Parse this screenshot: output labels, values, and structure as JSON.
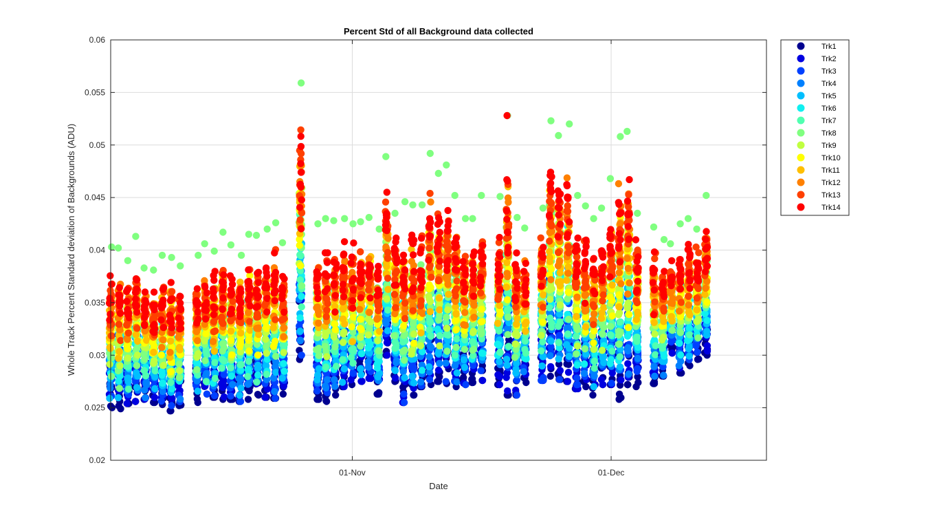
{
  "chart_data": {
    "type": "scatter",
    "title": "Percent Std of all Background data collected",
    "xlabel": "Date",
    "ylabel": "Whole Track Percent Standard deviation of Backgrounds (ADU)",
    "ylim": [
      0.02,
      0.06
    ],
    "yticks": [
      "0.02",
      "0.025",
      "0.03",
      "0.035",
      "0.04",
      "0.045",
      "0.05",
      "0.055",
      "0.06"
    ],
    "xlim_days": [
      -27,
      49
    ],
    "xticks": [
      {
        "label": "01-Nov",
        "day": 1
      },
      {
        "label": "01-Dec",
        "day": 31
      }
    ],
    "grid": true,
    "legend_position": "outside-top-right",
    "series": [
      {
        "name": "Trk1",
        "color": "#00008F",
        "level": 0.0
      },
      {
        "name": "Trk2",
        "color": "#0000E0",
        "level": 0.077
      },
      {
        "name": "Trk3",
        "color": "#0040FF",
        "level": 0.154
      },
      {
        "name": "Trk4",
        "color": "#0080FF",
        "level": 0.231
      },
      {
        "name": "Trk5",
        "color": "#00BFFF",
        "level": 0.308
      },
      {
        "name": "Trk6",
        "color": "#10F0F0",
        "level": 0.385
      },
      {
        "name": "Trk7",
        "color": "#50FFB0",
        "level": 0.462
      },
      {
        "name": "Trk8",
        "color": "#80FF80",
        "level": 0.538
      },
      {
        "name": "Trk9",
        "color": "#C0FF40",
        "level": 0.615
      },
      {
        "name": "Trk10",
        "color": "#FFFF00",
        "level": 0.692
      },
      {
        "name": "Trk11",
        "color": "#FFBF00",
        "level": 0.769
      },
      {
        "name": "Trk12",
        "color": "#FF8000",
        "level": 0.846
      },
      {
        "name": "Trk13",
        "color": "#FF4000",
        "level": 0.923
      },
      {
        "name": "Trk14",
        "color": "#FF0000",
        "level": 1.0
      }
    ],
    "day_columns": [
      {
        "day": -27,
        "min": 0.025,
        "max": 0.0403
      },
      {
        "day": -26,
        "min": 0.0249,
        "max": 0.0402
      },
      {
        "day": -25,
        "min": 0.0254,
        "max": 0.039
      },
      {
        "day": -24,
        "min": 0.0256,
        "max": 0.0413
      },
      {
        "day": -23,
        "min": 0.0258,
        "max": 0.0383
      },
      {
        "day": -22,
        "min": 0.0255,
        "max": 0.0381
      },
      {
        "day": -21,
        "min": 0.0253,
        "max": 0.0395
      },
      {
        "day": -20,
        "min": 0.0247,
        "max": 0.0393
      },
      {
        "day": -19,
        "min": 0.0252,
        "max": 0.0385
      },
      {
        "day": -17,
        "min": 0.0255,
        "max": 0.0395
      },
      {
        "day": -16,
        "min": 0.0263,
        "max": 0.0406
      },
      {
        "day": -15,
        "min": 0.026,
        "max": 0.0399
      },
      {
        "day": -14,
        "min": 0.0258,
        "max": 0.0417
      },
      {
        "day": -13,
        "min": 0.0258,
        "max": 0.0405
      },
      {
        "day": -12,
        "min": 0.0256,
        "max": 0.0395
      },
      {
        "day": -11,
        "min": 0.0258,
        "max": 0.0415
      },
      {
        "day": -10,
        "min": 0.0262,
        "max": 0.0414
      },
      {
        "day": -9,
        "min": 0.026,
        "max": 0.042
      },
      {
        "day": -8,
        "min": 0.0259,
        "max": 0.0426
      },
      {
        "day": -7,
        "min": 0.0263,
        "max": 0.0407
      },
      {
        "day": -5,
        "min": 0.0296,
        "max": 0.0559
      },
      {
        "day": -3,
        "min": 0.0258,
        "max": 0.0425
      },
      {
        "day": -2,
        "min": 0.0256,
        "max": 0.043
      },
      {
        "day": -1,
        "min": 0.0262,
        "max": 0.0428
      },
      {
        "day": 0,
        "min": 0.027,
        "max": 0.043
      },
      {
        "day": 1,
        "min": 0.0272,
        "max": 0.0425
      },
      {
        "day": 2,
        "min": 0.0275,
        "max": 0.0427
      },
      {
        "day": 3,
        "min": 0.0278,
        "max": 0.0431
      },
      {
        "day": 4,
        "min": 0.0263,
        "max": 0.042
      },
      {
        "day": 5,
        "min": 0.03,
        "max": 0.0489
      },
      {
        "day": 6,
        "min": 0.0275,
        "max": 0.0435
      },
      {
        "day": 7,
        "min": 0.0255,
        "max": 0.0446
      },
      {
        "day": 8,
        "min": 0.0262,
        "max": 0.0443
      },
      {
        "day": 9,
        "min": 0.027,
        "max": 0.0443
      },
      {
        "day": 10,
        "min": 0.0272,
        "max": 0.0492
      },
      {
        "day": 11,
        "min": 0.0275,
        "max": 0.0473
      },
      {
        "day": 12,
        "min": 0.0273,
        "max": 0.0481
      },
      {
        "day": 13,
        "min": 0.027,
        "max": 0.0452
      },
      {
        "day": 14,
        "min": 0.0272,
        "max": 0.043
      },
      {
        "day": 15,
        "min": 0.0274,
        "max": 0.043
      },
      {
        "day": 16,
        "min": 0.0276,
        "max": 0.0452
      },
      {
        "day": 18,
        "min": 0.0272,
        "max": 0.0451
      },
      {
        "day": 19,
        "min": 0.0262,
        "max": 0.0528
      },
      {
        "day": 20,
        "min": 0.0262,
        "max": 0.0431
      },
      {
        "day": 21,
        "min": 0.0274,
        "max": 0.0421
      },
      {
        "day": 23,
        "min": 0.0276,
        "max": 0.044
      },
      {
        "day": 24,
        "min": 0.028,
        "max": 0.0523
      },
      {
        "day": 25,
        "min": 0.0277,
        "max": 0.0509
      },
      {
        "day": 26,
        "min": 0.0275,
        "max": 0.052
      },
      {
        "day": 27,
        "min": 0.0268,
        "max": 0.0452
      },
      {
        "day": 28,
        "min": 0.027,
        "max": 0.0442
      },
      {
        "day": 29,
        "min": 0.0262,
        "max": 0.043
      },
      {
        "day": 30,
        "min": 0.0272,
        "max": 0.044
      },
      {
        "day": 31,
        "min": 0.0272,
        "max": 0.0468
      },
      {
        "day": 32,
        "min": 0.0258,
        "max": 0.0508
      },
      {
        "day": 33,
        "min": 0.0272,
        "max": 0.0513
      },
      {
        "day": 34,
        "min": 0.027,
        "max": 0.0435
      },
      {
        "day": 36,
        "min": 0.0273,
        "max": 0.0422
      },
      {
        "day": 37,
        "min": 0.028,
        "max": 0.041
      },
      {
        "day": 38,
        "min": 0.0302,
        "max": 0.0406
      },
      {
        "day": 39,
        "min": 0.0283,
        "max": 0.0425
      },
      {
        "day": 40,
        "min": 0.029,
        "max": 0.043
      },
      {
        "day": 41,
        "min": 0.0296,
        "max": 0.042
      },
      {
        "day": 42,
        "min": 0.03,
        "max": 0.0452
      }
    ]
  }
}
